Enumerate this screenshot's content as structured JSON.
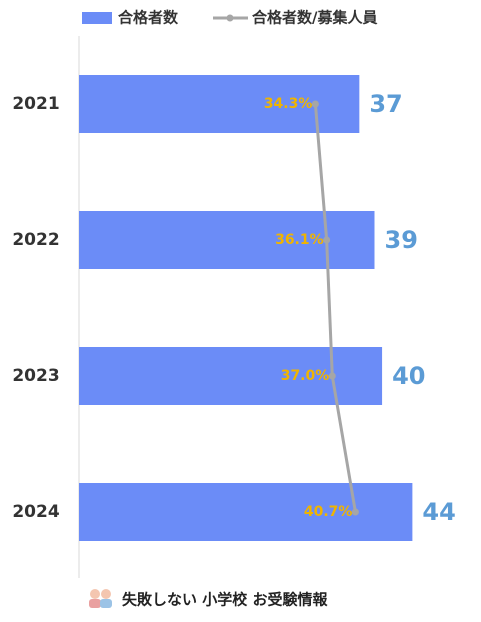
{
  "chart_data": {
    "type": "bar",
    "orientation": "horizontal",
    "categories": [
      "2021",
      "2022",
      "2023",
      "2024"
    ],
    "series": [
      {
        "name": "合格者数",
        "color": "#6b8cf7",
        "label_color": "#5b9bd5",
        "values": [
          37,
          39,
          40,
          44
        ]
      },
      {
        "name": "合格者数/募集人員",
        "type": "line",
        "axis": "x2",
        "color": "#a6a6a6",
        "label_color": "#f0b400",
        "values": [
          34.3,
          36.1,
          37.0,
          40.7
        ],
        "value_labels": [
          "34.3%",
          "36.1%",
          "37.0%",
          "40.7%"
        ]
      }
    ],
    "xlim": [
      0,
      52
    ],
    "x2lim": [
      -3.5,
      59.5
    ],
    "legend": "top"
  },
  "footer": "失敗しない 小学校 お受験情報"
}
